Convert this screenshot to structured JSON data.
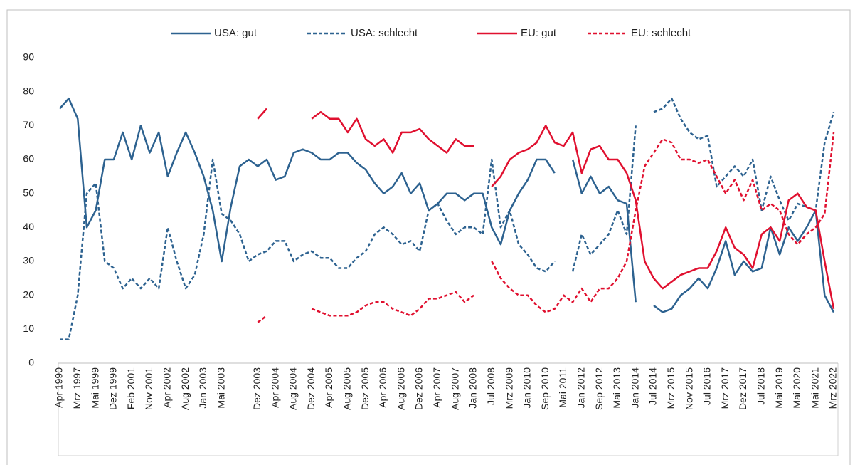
{
  "chart_data": {
    "type": "line",
    "categories": [
      "Apr 1990",
      null,
      "Mrz 1997",
      null,
      "Mai 1999",
      null,
      "Dez 1999",
      null,
      "Feb 2001",
      null,
      "Nov 2001",
      null,
      "Apr 2002",
      null,
      "Aug 2002",
      null,
      "Jan 2003",
      null,
      "Mai 2003",
      null,
      null,
      null,
      "Dez 2003",
      null,
      "Apr 2004",
      null,
      "Aug 2004",
      null,
      "Dez 2004",
      null,
      "Apr 2005",
      null,
      "Aug 2005",
      null,
      "Dez 2005",
      null,
      "Apr 2006",
      null,
      "Aug 2006",
      null,
      "Dez 2006",
      null,
      "Apr 2007",
      null,
      "Aug 2007",
      null,
      "Jan 2008",
      null,
      "Jul 2008",
      null,
      "Mrz 2009",
      null,
      "Jan 2010",
      null,
      "Sep 2010",
      null,
      "Mai 2011",
      null,
      "Jan 2012",
      null,
      "Sep 2012",
      null,
      "Mai 2013",
      null,
      "Jan 2014",
      null,
      "Jul 2014",
      null,
      "Mrz 2015",
      null,
      "Nov 2015",
      null,
      "Jul 2016",
      null,
      "Mrz 2017",
      null,
      "Dez 2017",
      null,
      "Jul 2018",
      null,
      "Mai 2019",
      null,
      "Mai 2020",
      null,
      "Mai 2021",
      null,
      "Mrz 2022"
    ],
    "series": [
      {
        "name": "USA: gut",
        "color": "#2d6290",
        "dash": false,
        "values": [
          75,
          78,
          72,
          40,
          45,
          60,
          60,
          68,
          60,
          70,
          62,
          68,
          55,
          62,
          68,
          62,
          55,
          45,
          30,
          46,
          58,
          60,
          58,
          60,
          54,
          55,
          62,
          63,
          62,
          60,
          60,
          62,
          62,
          59,
          57,
          53,
          50,
          52,
          56,
          50,
          53,
          45,
          47,
          50,
          50,
          48,
          50,
          50,
          40,
          35,
          45,
          50,
          54,
          60,
          60,
          56,
          null,
          60,
          50,
          55,
          50,
          52,
          48,
          47,
          18,
          null,
          17,
          15,
          16,
          20,
          22,
          25,
          22,
          28,
          36,
          26,
          30,
          27,
          28,
          40,
          32,
          40,
          36,
          40,
          45,
          20,
          15
        ]
      },
      {
        "name": "USA: schlecht",
        "color": "#2d6290",
        "dash": true,
        "values": [
          7,
          7,
          20,
          50,
          53,
          30,
          28,
          22,
          25,
          22,
          25,
          22,
          40,
          30,
          22,
          26,
          38,
          60,
          44,
          42,
          38,
          30,
          32,
          33,
          36,
          36,
          30,
          32,
          33,
          31,
          31,
          28,
          28,
          31,
          33,
          38,
          40,
          38,
          35,
          36,
          33,
          45,
          47,
          42,
          38,
          40,
          40,
          38,
          60,
          40,
          45,
          35,
          32,
          28,
          27,
          30,
          null,
          27,
          38,
          32,
          35,
          38,
          45,
          38,
          70,
          null,
          74,
          75,
          78,
          72,
          68,
          66,
          67,
          52,
          55,
          58,
          55,
          60,
          45,
          55,
          48,
          42,
          47,
          46,
          45,
          65,
          74
        ]
      },
      {
        "name": "EU: gut",
        "color": "#e0102f",
        "dash": false,
        "values": [
          null,
          null,
          null,
          null,
          null,
          null,
          null,
          null,
          null,
          null,
          null,
          null,
          null,
          null,
          null,
          null,
          null,
          null,
          null,
          null,
          null,
          null,
          72,
          75,
          null,
          null,
          null,
          null,
          72,
          74,
          72,
          72,
          68,
          72,
          66,
          64,
          66,
          62,
          68,
          68,
          69,
          66,
          64,
          62,
          66,
          64,
          64,
          null,
          52,
          55,
          60,
          62,
          63,
          65,
          70,
          65,
          64,
          68,
          56,
          63,
          64,
          60,
          60,
          56,
          48,
          30,
          25,
          22,
          24,
          26,
          27,
          28,
          28,
          33,
          40,
          34,
          32,
          28,
          38,
          40,
          36,
          48,
          50,
          46,
          45,
          30,
          16
        ]
      },
      {
        "name": "EU: schlecht",
        "color": "#e0102f",
        "dash": true,
        "values": [
          null,
          null,
          null,
          null,
          null,
          null,
          null,
          null,
          null,
          null,
          null,
          null,
          null,
          null,
          null,
          null,
          null,
          null,
          null,
          null,
          null,
          null,
          12,
          14,
          null,
          null,
          null,
          null,
          16,
          15,
          14,
          14,
          14,
          15,
          17,
          18,
          18,
          16,
          15,
          14,
          16,
          19,
          19,
          20,
          21,
          18,
          20,
          null,
          30,
          25,
          22,
          20,
          20,
          17,
          15,
          16,
          20,
          18,
          22,
          18,
          22,
          22,
          25,
          30,
          45,
          58,
          62,
          66,
          65,
          60,
          60,
          59,
          60,
          55,
          50,
          54,
          48,
          54,
          45,
          47,
          45,
          38,
          35,
          38,
          40,
          44,
          68
        ]
      }
    ],
    "ylim": [
      0,
      90
    ],
    "yticks": [
      0,
      10,
      20,
      30,
      40,
      50,
      60,
      70,
      80,
      90
    ],
    "grid": false,
    "legend": "top"
  }
}
